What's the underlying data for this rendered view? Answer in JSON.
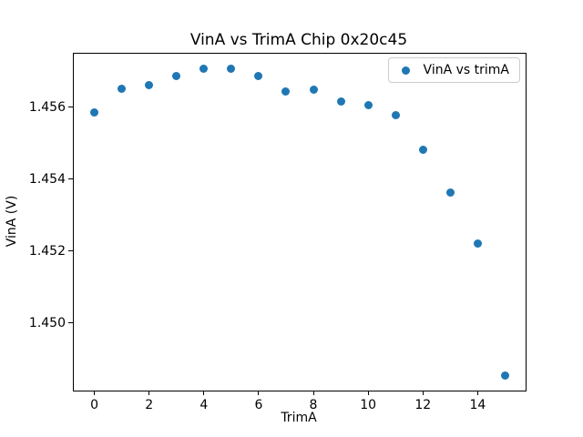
{
  "figure": {
    "title": "VinA vs TrimA Chip 0x20c45",
    "xlabel": "TrimA",
    "ylabel": "VinA (V)",
    "background_color": "#ffffff",
    "spine_color": "#000000"
  },
  "legend": {
    "label": "VinA vs trimA",
    "marker": "dot-icon",
    "marker_color": "#1f77b4",
    "border_color": "#cccccc",
    "position": "upper right"
  },
  "chart_data": {
    "type": "scatter",
    "title": "VinA vs TrimA Chip 0x20c45",
    "xlabel": "TrimA",
    "ylabel": "VinA (V)",
    "grid": false,
    "legend_position": "upper right",
    "xlim": [
      -0.75,
      15.75
    ],
    "ylim": [
      1.44812,
      1.45749
    ],
    "xticks": [
      0,
      2,
      4,
      6,
      8,
      10,
      12,
      14
    ],
    "xtick_labels": [
      "0",
      "2",
      "4",
      "6",
      "8",
      "10",
      "12",
      "14"
    ],
    "yticks": [
      1.45,
      1.452,
      1.454,
      1.456
    ],
    "ytick_labels": [
      "1.450",
      "1.452",
      "1.454",
      "1.456"
    ],
    "series": [
      {
        "name": "VinA vs trimA",
        "color": "#1f77b4",
        "marker": "circle",
        "x": [
          0,
          1,
          2,
          3,
          4,
          5,
          6,
          7,
          8,
          9,
          10,
          11,
          12,
          13,
          14,
          15
        ],
        "y": [
          1.45585,
          1.45651,
          1.45661,
          1.45686,
          1.45706,
          1.45708,
          1.45688,
          1.45643,
          1.45648,
          1.45616,
          1.45606,
          1.45578,
          1.45483,
          1.45363,
          1.4522,
          1.44853
        ]
      }
    ]
  }
}
